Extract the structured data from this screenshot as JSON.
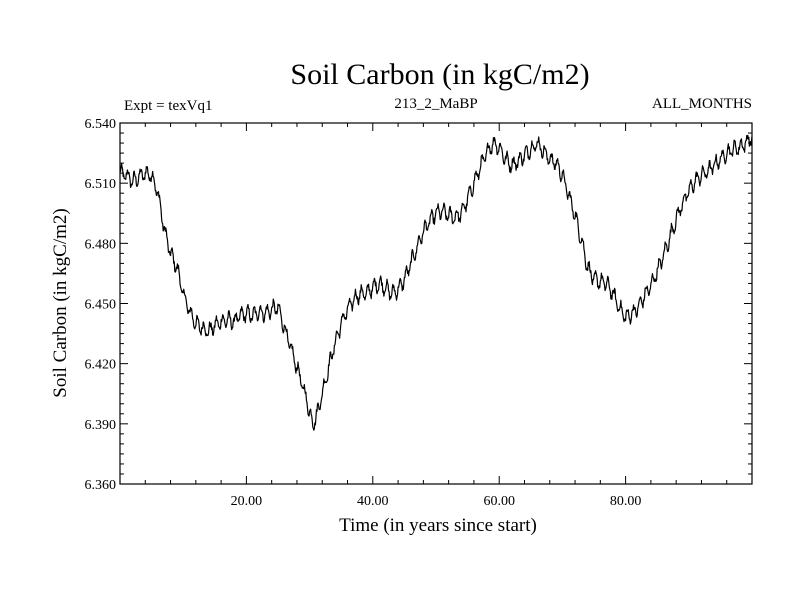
{
  "chart_data": {
    "type": "line",
    "title": "Soil Carbon (in kgC/m2)",
    "subtitle_left": "Expt = texVq1",
    "subtitle_center": "213_2_MaBP",
    "subtitle_right": "ALL_MONTHS",
    "xlabel": "Time (in years since start)",
    "ylabel": "Soil Carbon (in kgC/m2)",
    "xlim": [
      0,
      100
    ],
    "ylim": [
      6.36,
      6.54
    ],
    "xticks": [
      20,
      40,
      60,
      80
    ],
    "xtick_labels": [
      "20.00",
      "40.00",
      "60.00",
      "80.00"
    ],
    "yticks": [
      6.36,
      6.39,
      6.42,
      6.45,
      6.48,
      6.51,
      6.54
    ],
    "ytick_labels": [
      "6.360",
      "6.390",
      "6.420",
      "6.450",
      "6.480",
      "6.510",
      "6.540"
    ],
    "grid": false,
    "line_color": "#000000",
    "series": [
      {
        "name": "Soil Carbon",
        "x": [
          0,
          1,
          2,
          3,
          4,
          5,
          6,
          7,
          8,
          9,
          10,
          11,
          12,
          13,
          14,
          15,
          16,
          17,
          18,
          19,
          20,
          21,
          22,
          23,
          24,
          25,
          26,
          27,
          28,
          29,
          30,
          30.5,
          31,
          32,
          33,
          34,
          35,
          36,
          37,
          38,
          39,
          40,
          41,
          42,
          43,
          44,
          45,
          46,
          47,
          48,
          49,
          50,
          51,
          52,
          53,
          54,
          55,
          56,
          57,
          58,
          59,
          60,
          61,
          62,
          63,
          64,
          65,
          66,
          67,
          68,
          69,
          70,
          71,
          72,
          73,
          74,
          75,
          76,
          77,
          78,
          79,
          80,
          81,
          82,
          83,
          84,
          85,
          86,
          87,
          88,
          89,
          90,
          91,
          92,
          93,
          94,
          95,
          96,
          97,
          98,
          99,
          100
        ],
        "values": [
          6.515,
          6.514,
          6.511,
          6.513,
          6.515,
          6.514,
          6.505,
          6.487,
          6.475,
          6.468,
          6.455,
          6.446,
          6.44,
          6.438,
          6.436,
          6.439,
          6.441,
          6.442,
          6.441,
          6.444,
          6.445,
          6.444,
          6.446,
          6.445,
          6.447,
          6.448,
          6.438,
          6.428,
          6.418,
          6.408,
          6.396,
          6.39,
          6.393,
          6.405,
          6.418,
          6.43,
          6.44,
          6.447,
          6.452,
          6.455,
          6.455,
          6.458,
          6.46,
          6.458,
          6.455,
          6.457,
          6.462,
          6.47,
          6.478,
          6.486,
          6.491,
          6.495,
          6.496,
          6.494,
          6.493,
          6.495,
          6.502,
          6.51,
          6.518,
          6.525,
          6.53,
          6.528,
          6.522,
          6.519,
          6.521,
          6.524,
          6.527,
          6.53,
          6.526,
          6.522,
          6.52,
          6.514,
          6.504,
          6.494,
          6.482,
          6.468,
          6.462,
          6.461,
          6.46,
          6.455,
          6.448,
          6.443,
          6.445,
          6.448,
          6.454,
          6.459,
          6.466,
          6.474,
          6.483,
          6.492,
          6.5,
          6.506,
          6.511,
          6.514,
          6.516,
          6.519,
          6.522,
          6.525,
          6.527,
          6.528,
          6.53,
          6.533
        ]
      }
    ]
  }
}
